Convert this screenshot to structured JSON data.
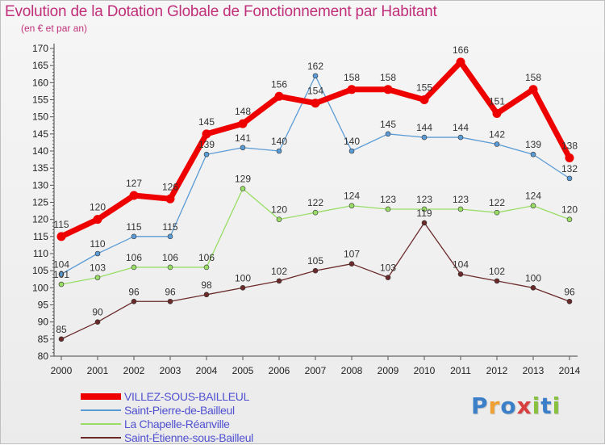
{
  "chart_data": {
    "type": "line",
    "title": "Evolution de la Dotation Globale de Fonctionnement par Habitant",
    "subtitle": "(en € et par an)",
    "x": [
      "2000",
      "2001",
      "2002",
      "2003",
      "2004",
      "2005",
      "2006",
      "2007",
      "2008",
      "2009",
      "2010",
      "2011",
      "2012",
      "2013",
      "2014"
    ],
    "ylim": [
      80,
      170
    ],
    "yticks": [
      80,
      85,
      90,
      95,
      100,
      105,
      110,
      115,
      120,
      125,
      130,
      135,
      140,
      145,
      150,
      155,
      160,
      165,
      170
    ],
    "grid": false,
    "legend_position": "bottom-left",
    "series": [
      {
        "name": "VILLEZ-SOUS-BAILLEUL",
        "color": "#ee0000",
        "values": [
          115,
          120,
          127,
          126,
          145,
          148,
          156,
          154,
          158,
          158,
          155,
          166,
          151,
          158,
          138
        ]
      },
      {
        "name": "Saint-Pierre-de-Bailleul",
        "color": "#5b9bd5",
        "values": [
          104,
          110,
          115,
          115,
          139,
          141,
          140,
          162,
          140,
          145,
          144,
          144,
          142,
          139,
          132
        ]
      },
      {
        "name": "La Chapelle-Réanville",
        "color": "#99dd66",
        "values": [
          101,
          103,
          106,
          106,
          106,
          129,
          120,
          122,
          124,
          123,
          123,
          123,
          122,
          124,
          120
        ]
      },
      {
        "name": "Saint-Étienne-sous-Bailleul",
        "color": "#6b2a2a",
        "values": [
          85,
          90,
          96,
          96,
          98,
          100,
          102,
          105,
          107,
          103,
          119,
          104,
          102,
          100,
          96
        ]
      }
    ]
  },
  "logo": {
    "text": "Proxiti",
    "letters": [
      "P",
      "r",
      "o",
      "x",
      "i",
      "t",
      "i"
    ],
    "colors": [
      "#3a7fc8",
      "#f0a030",
      "#3a7fc8",
      "#d84040",
      "#88c040",
      "#3a7fc8",
      "#88c040"
    ]
  }
}
